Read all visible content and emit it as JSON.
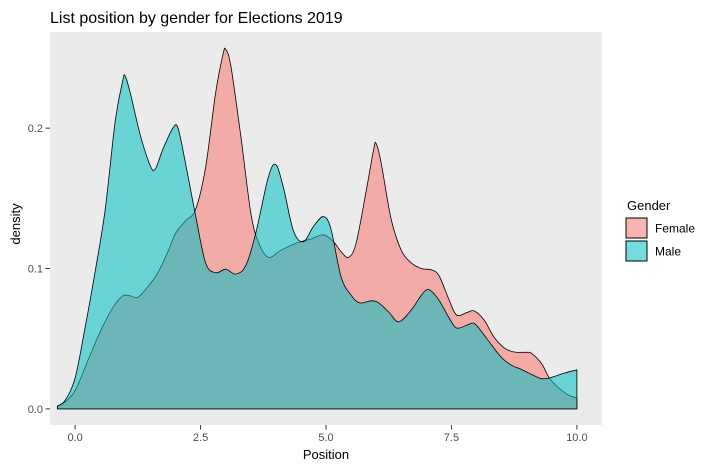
{
  "title": "List position by gender for Elections 2019",
  "chart_data": {
    "type": "area",
    "subtype": "kernel-density",
    "title": "List position by gender for Elections 2019",
    "xlabel": "Position",
    "ylabel": "density",
    "xlim": [
      -0.5,
      10.5
    ],
    "ylim": [
      -0.0115,
      0.2685
    ],
    "x_ticks": [
      0,
      2.5,
      5,
      7.5,
      10
    ],
    "x_tick_labels": [
      "0.0",
      "2.5",
      "5.0",
      "7.5",
      "10.0"
    ],
    "y_ticks": [
      0,
      0.1,
      0.2
    ],
    "y_tick_labels": [
      "0.0",
      "0.1",
      "0.2"
    ],
    "grid": false,
    "panel_bg": "#EBEBEB",
    "outline_color": "#000000",
    "legend": {
      "title": "Gender",
      "position": "right"
    },
    "series": [
      {
        "name": "Female",
        "base_color": "#F8766D",
        "fill_rgba": "rgba(248,118,109,0.55)",
        "points": [
          [
            -0.35,
            0.002
          ],
          [
            -0.2,
            0.005
          ],
          [
            0,
            0.013
          ],
          [
            0.25,
            0.034
          ],
          [
            0.5,
            0.055
          ],
          [
            0.75,
            0.072
          ],
          [
            0.95,
            0.0805
          ],
          [
            1.1,
            0.0805
          ],
          [
            1.25,
            0.0795
          ],
          [
            1.45,
            0.087
          ],
          [
            1.65,
            0.097
          ],
          [
            1.85,
            0.112
          ],
          [
            2.0,
            0.125
          ],
          [
            2.2,
            0.134
          ],
          [
            2.4,
            0.142
          ],
          [
            2.6,
            0.172
          ],
          [
            2.8,
            0.225
          ],
          [
            2.95,
            0.253
          ],
          [
            3.0,
            0.256
          ],
          [
            3.1,
            0.245
          ],
          [
            3.3,
            0.195
          ],
          [
            3.5,
            0.14
          ],
          [
            3.65,
            0.119
          ],
          [
            3.85,
            0.108
          ],
          [
            4.1,
            0.113
          ],
          [
            4.4,
            0.118
          ],
          [
            4.7,
            0.121
          ],
          [
            4.95,
            0.124
          ],
          [
            5.15,
            0.119
          ],
          [
            5.3,
            0.112
          ],
          [
            5.45,
            0.108
          ],
          [
            5.6,
            0.118
          ],
          [
            5.8,
            0.155
          ],
          [
            5.95,
            0.185
          ],
          [
            6.0,
            0.189
          ],
          [
            6.1,
            0.175
          ],
          [
            6.3,
            0.135
          ],
          [
            6.5,
            0.113
          ],
          [
            6.7,
            0.104
          ],
          [
            6.9,
            0.1
          ],
          [
            7.1,
            0.099
          ],
          [
            7.25,
            0.095
          ],
          [
            7.45,
            0.078
          ],
          [
            7.6,
            0.0669
          ],
          [
            7.8,
            0.0685
          ],
          [
            7.95,
            0.0698
          ],
          [
            8.15,
            0.0633
          ],
          [
            8.35,
            0.051
          ],
          [
            8.55,
            0.0435
          ],
          [
            8.75,
            0.0405
          ],
          [
            9.0,
            0.0403
          ],
          [
            9.1,
            0.0395
          ],
          [
            9.3,
            0.032
          ],
          [
            9.45,
            0.022
          ],
          [
            9.65,
            0.0145
          ],
          [
            9.85,
            0.0095
          ],
          [
            10.0,
            0.0078
          ]
        ]
      },
      {
        "name": "Male",
        "base_color": "#00BFC4",
        "fill_rgba": "rgba(0,191,196,0.55)",
        "points": [
          [
            -0.35,
            0.002
          ],
          [
            -0.2,
            0.006
          ],
          [
            0,
            0.022
          ],
          [
            0.2,
            0.058
          ],
          [
            0.4,
            0.098
          ],
          [
            0.6,
            0.142
          ],
          [
            0.8,
            0.205
          ],
          [
            0.95,
            0.234
          ],
          [
            1.0,
            0.237
          ],
          [
            1.1,
            0.225
          ],
          [
            1.3,
            0.195
          ],
          [
            1.5,
            0.173
          ],
          [
            1.6,
            0.171
          ],
          [
            1.75,
            0.185
          ],
          [
            1.95,
            0.2
          ],
          [
            2.05,
            0.2
          ],
          [
            2.2,
            0.175
          ],
          [
            2.4,
            0.138
          ],
          [
            2.6,
            0.104
          ],
          [
            2.8,
            0.097
          ],
          [
            3.0,
            0.0995
          ],
          [
            3.2,
            0.096
          ],
          [
            3.4,
            0.102
          ],
          [
            3.6,
            0.125
          ],
          [
            3.85,
            0.165
          ],
          [
            4.0,
            0.174
          ],
          [
            4.15,
            0.158
          ],
          [
            4.35,
            0.127
          ],
          [
            4.55,
            0.119
          ],
          [
            4.75,
            0.13
          ],
          [
            4.95,
            0.137
          ],
          [
            5.1,
            0.128
          ],
          [
            5.3,
            0.094
          ],
          [
            5.5,
            0.081
          ],
          [
            5.67,
            0.0755
          ],
          [
            5.9,
            0.077
          ],
          [
            6.05,
            0.0755
          ],
          [
            6.25,
            0.069
          ],
          [
            6.45,
            0.062
          ],
          [
            6.7,
            0.0705
          ],
          [
            6.9,
            0.081
          ],
          [
            7.05,
            0.085
          ],
          [
            7.25,
            0.0775
          ],
          [
            7.45,
            0.065
          ],
          [
            7.6,
            0.0576
          ],
          [
            7.8,
            0.0595
          ],
          [
            7.95,
            0.061
          ],
          [
            8.1,
            0.055
          ],
          [
            8.3,
            0.0455
          ],
          [
            8.5,
            0.0365
          ],
          [
            8.7,
            0.031
          ],
          [
            8.9,
            0.028
          ],
          [
            9.1,
            0.0245
          ],
          [
            9.3,
            0.0215
          ],
          [
            9.5,
            0.0225
          ],
          [
            9.75,
            0.0255
          ],
          [
            10.0,
            0.0278
          ]
        ]
      }
    ]
  }
}
